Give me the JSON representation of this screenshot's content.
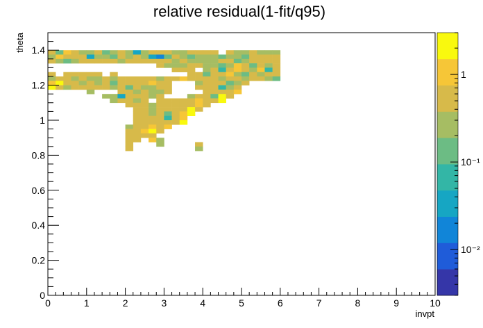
{
  "chart_data": {
    "type": "heatmap",
    "title": "relative residual(1-fit/q95)",
    "xlabel": "invpt",
    "ylabel": "theta",
    "xlim": [
      0,
      10
    ],
    "ylim": [
      0,
      1.5
    ],
    "x_ticks": [
      "0",
      "1",
      "2",
      "3",
      "4",
      "5",
      "6",
      "7",
      "8",
      "9",
      "10"
    ],
    "y_ticks": [
      "0",
      "0.2",
      "0.4",
      "0.6",
      "0.8",
      "1",
      "1.2",
      "1.4"
    ],
    "colorbar": {
      "scale": "log",
      "range": [
        0.003,
        3
      ],
      "ticks": [
        {
          "value": 1,
          "label": "1"
        },
        {
          "value": 0.1,
          "label": "10⁻¹"
        },
        {
          "value": 0.01,
          "label": "10⁻²"
        }
      ],
      "palette": [
        "#3536a8",
        "#1f5cd9",
        "#1185d8",
        "#16a6c3",
        "#33b6a6",
        "#6cbc84",
        "#a6bd63",
        "#d7ba4a",
        "#f6c637",
        "#f9f90e"
      ]
    },
    "bin_width_x": 0.2,
    "bin_width_y": 0.025,
    "rows": [
      {
        "theta": 1.3875,
        "x0": 0.0,
        "values": [
          0.6,
          0.12,
          0.8,
          0.5,
          0.3,
          0.25,
          0.6,
          0.15,
          0.25,
          0.4,
          0.35,
          0.03,
          0.3,
          0.6,
          0.5,
          0.5,
          0.3,
          0.25,
          0.5,
          0.6,
          0.6,
          0.5,
          0,
          0.5,
          0.3,
          0.3,
          0.4,
          0.3,
          0.2,
          0.3
        ]
      },
      {
        "theta": 1.3625,
        "x0": 0.0,
        "values": [
          0.25,
          0.8,
          0.5,
          0.6,
          0.4,
          0.03,
          0.3,
          0.3,
          0.15,
          0.5,
          0.2,
          0.4,
          0.25,
          0.03,
          0.02,
          0.15,
          0.4,
          0.3,
          0.15,
          0.3,
          0.3,
          0.25,
          0.15,
          0.2,
          0.25,
          0.12,
          0.5,
          0.6,
          0.6,
          0.4
        ]
      },
      {
        "theta": 1.3375,
        "x0": 0.0,
        "values": [
          0.4,
          0.3,
          0.1,
          0.3,
          0.5,
          0.4,
          0.6,
          0.6,
          0.4,
          0.3,
          0.6,
          0.6,
          0.5,
          0.5,
          0.4,
          0.6,
          0.3,
          0.4,
          0.2,
          0.3,
          0.3,
          0.2,
          0.6,
          0.5,
          0.15,
          0.3,
          0.5,
          0.4,
          0.6,
          0.5
        ]
      },
      {
        "theta": 1.3125,
        "x0": 2.8,
        "values": [
          0.5,
          0.3,
          0.3,
          0.25,
          0.4,
          0.6,
          0.3,
          0.2,
          0.15,
          0.3,
          0.8,
          0.4,
          0.1,
          0.6,
          0.3,
          0.6
        ]
      },
      {
        "theta": 1.2875,
        "x0": 3.2,
        "values": [
          0.5,
          0.6,
          0.6,
          0,
          0.2,
          0.5,
          0.05,
          0.4,
          0.8,
          0.6,
          0.25,
          1.2,
          0.05,
          0.5
        ]
      },
      {
        "theta": 1.2625,
        "x0": 0.0,
        "values": [
          0.6,
          0,
          0.5,
          0.6,
          0.6,
          0.4,
          0.5,
          0,
          0.5,
          0
        ]
      },
      {
        "theta": 1.2625,
        "x0": 3.6,
        "values": [
          0.5,
          0.4,
          0.15,
          0.5,
          0.6,
          1.5,
          0.3,
          0.15,
          0.5,
          0.3,
          0.6,
          0.5
        ]
      },
      {
        "theta": 1.2375,
        "x0": 0.0,
        "values": [
          0.3,
          0.4,
          0.6,
          0.2,
          0.5,
          0.3,
          0.25,
          0.4,
          0.3,
          0.5,
          0.4,
          0.5,
          0.6,
          0.4,
          0.3,
          0.5,
          0.6,
          0.8,
          0.4,
          0.6,
          0.6,
          0.5,
          0.25,
          0.4,
          0.6,
          0.3,
          0.5,
          0.6,
          0.3,
          0.15
        ]
      },
      {
        "theta": 1.2125,
        "x0": 0.0,
        "values": [
          1.5,
          3,
          0.6,
          0.5,
          0.3,
          0.4,
          0.3,
          0.5,
          0.15,
          0.5,
          0.6,
          0.4,
          0.6,
          0.8,
          0.5,
          0.4,
          0,
          0,
          0,
          0.3,
          0.6,
          0.6,
          0.5,
          0.12,
          0.3,
          0.5
        ]
      },
      {
        "theta": 1.1875,
        "x0": 0.0,
        "values": [
          3,
          0.6,
          0.3,
          0.6,
          0.5,
          0.6,
          0.6,
          0.6,
          0.3,
          0.4,
          0.1,
          0.4,
          0.3,
          0.25,
          0.5,
          0.6,
          0,
          0,
          0,
          0.6,
          0.6,
          0.5,
          0.06,
          0.25,
          0.6
        ]
      },
      {
        "theta": 1.1625,
        "x0": 1.0,
        "values": [
          0.3,
          0,
          0,
          0,
          0.4,
          0.6,
          0.3,
          0.6,
          0.3,
          0.3,
          0.5,
          0,
          0,
          0,
          0,
          0.5,
          0.4,
          0.6,
          0.6,
          0.8
        ]
      },
      {
        "theta": 1.1375,
        "x0": 1.4,
        "values": [
          0.25,
          0.3,
          0.04,
          0.5,
          0.6,
          0.4,
          0.3,
          0.6,
          0,
          0,
          0,
          0.3,
          0.6,
          0.4,
          0.1,
          2.5,
          0.6
        ]
      },
      {
        "theta": 1.1125,
        "x0": 1.6,
        "values": [
          0.3,
          0.5,
          0.6,
          0.3,
          0.6,
          0,
          0.5,
          0.6,
          0.6,
          0.4,
          0.6,
          0.8,
          0.6,
          0.5,
          3
        ]
      },
      {
        "theta": 1.0875,
        "x0": 2.0,
        "values": [
          0.4,
          0.6,
          0.5,
          0.3,
          0.6,
          0.6,
          0.4,
          0.5,
          0.6,
          1.5,
          0.6
        ]
      },
      {
        "theta": 1.0625,
        "x0": 2.2,
        "values": [
          0.6,
          0.5,
          0.3,
          0.6,
          0.6,
          0.4,
          0.6,
          3,
          0.5
        ]
      },
      {
        "theta": 1.0375,
        "x0": 2.2,
        "values": [
          0.5,
          0.6,
          0.3,
          0.4,
          0.15,
          0.6,
          0.8,
          3
        ]
      },
      {
        "theta": 1.0125,
        "x0": 2.2,
        "values": [
          0.5,
          0.6,
          0.4,
          0.6,
          0.06,
          0.5,
          1.5
        ]
      },
      {
        "theta": 0.9875,
        "x0": 2.2,
        "values": [
          0.6,
          0.4,
          0.6,
          0.6,
          0.4,
          0.6,
          3
        ]
      },
      {
        "theta": 0.9625,
        "x0": 2.0,
        "values": [
          0.3,
          0.6,
          0.5,
          0.8,
          0.6,
          1.5
        ]
      },
      {
        "theta": 0.9375,
        "x0": 2.0,
        "values": [
          0.6,
          0.5,
          0.8,
          3,
          0.6
        ]
      },
      {
        "theta": 0.9125,
        "x0": 2.0,
        "values": [
          0.4,
          0.6,
          0.5,
          0.6
        ]
      },
      {
        "theta": 0.8875,
        "x0": 2.0,
        "values": [
          0.5,
          0.6,
          0,
          0.8,
          0.3
        ]
      },
      {
        "theta": 0.8625,
        "x0": 2.0,
        "values": [
          0.5,
          0,
          0,
          0,
          0.3
        ]
      },
      {
        "theta": 0.8625,
        "x0": 3.8,
        "values": [
          0.6
        ]
      },
      {
        "theta": 0.8375,
        "x0": 2.0,
        "values": [
          0.4
        ]
      },
      {
        "theta": 0.8375,
        "x0": 3.8,
        "values": [
          0.3
        ]
      }
    ]
  }
}
